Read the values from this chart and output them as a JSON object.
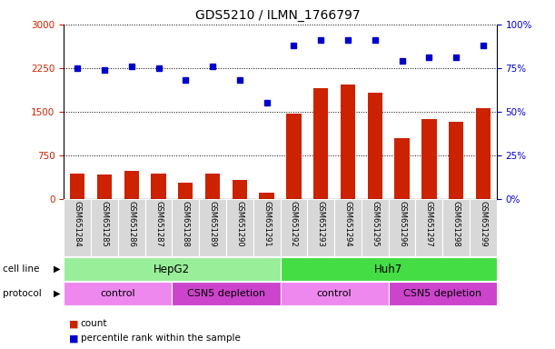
{
  "title": "GDS5210 / ILMN_1766797",
  "samples": [
    "GSM651284",
    "GSM651285",
    "GSM651286",
    "GSM651287",
    "GSM651288",
    "GSM651289",
    "GSM651290",
    "GSM651291",
    "GSM651292",
    "GSM651293",
    "GSM651294",
    "GSM651295",
    "GSM651296",
    "GSM651297",
    "GSM651298",
    "GSM651299"
  ],
  "counts": [
    430,
    420,
    490,
    430,
    280,
    430,
    330,
    100,
    1460,
    1900,
    1960,
    1820,
    1050,
    1380,
    1320,
    1560
  ],
  "percentile_ranks": [
    75,
    74,
    76,
    75,
    68,
    76,
    68,
    55,
    88,
    91,
    91,
    91,
    79,
    81,
    81,
    88
  ],
  "bar_color": "#cc2200",
  "dot_color": "#0000cc",
  "ylim_left": [
    0,
    3000
  ],
  "ylim_right": [
    0,
    100
  ],
  "yticks_left": [
    0,
    750,
    1500,
    2250,
    3000
  ],
  "yticks_right": [
    0,
    25,
    50,
    75,
    100
  ],
  "cell_line_groups": [
    {
      "label": "HepG2",
      "start": 0,
      "end": 8,
      "color": "#99ee99"
    },
    {
      "label": "Huh7",
      "start": 8,
      "end": 16,
      "color": "#44dd44"
    }
  ],
  "protocol_groups": [
    {
      "label": "control",
      "start": 0,
      "end": 4,
      "color": "#ee88ee"
    },
    {
      "label": "CSN5 depletion",
      "start": 4,
      "end": 8,
      "color": "#cc44cc"
    },
    {
      "label": "control",
      "start": 8,
      "end": 12,
      "color": "#ee88ee"
    },
    {
      "label": "CSN5 depletion",
      "start": 12,
      "end": 16,
      "color": "#cc44cc"
    }
  ],
  "bar_color_legend": "#cc2200",
  "dot_color_legend": "#0000cc",
  "bg_color": "#ffffff",
  "tick_color_left": "#cc2200",
  "tick_color_right": "#0000cc",
  "label_bg_color": "#d8d8d8",
  "label_edge_color": "#ffffff"
}
